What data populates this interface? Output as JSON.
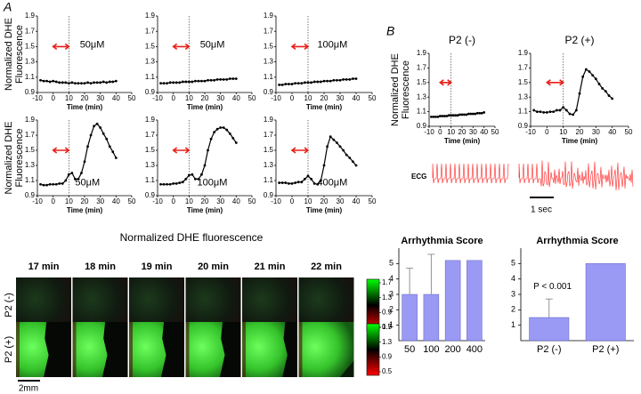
{
  "chart_data": [
    {
      "type": "line",
      "label": "50μM",
      "ylabel": [
        "Normalized DHE",
        "Fluorescence"
      ],
      "xlabel": "Time (min)",
      "color": "#000000",
      "x": [
        -8,
        -6,
        -4,
        -2,
        0,
        2,
        4,
        6,
        8,
        10,
        12,
        14,
        16,
        18,
        20,
        22,
        24,
        26,
        28,
        30,
        32,
        34,
        36,
        38,
        40
      ],
      "values": [
        1.06,
        1.05,
        1.05,
        1.04,
        1.05,
        1.04,
        1.03,
        1.03,
        1.03,
        1.02,
        1.03,
        1.02,
        1.02,
        1.02,
        1.02,
        1.03,
        1.02,
        1.03,
        1.03,
        1.03,
        1.04,
        1.03,
        1.04,
        1.04,
        1.05
      ],
      "xlim": [
        -10,
        50
      ],
      "xticks": [
        -10,
        0,
        10,
        20,
        30,
        40,
        50
      ],
      "ylim": [
        0.9,
        1.9
      ],
      "yticks": [
        0.9,
        1.1,
        1.3,
        1.5,
        1.7,
        1.9
      ],
      "vline": 10,
      "arrow": {
        "x": [
          0,
          10
        ],
        "y": 1.5,
        "color": "#e8201a"
      }
    },
    {
      "type": "line",
      "label": "50μM",
      "xlabel": "Time (min)",
      "color": "#000000",
      "x": [
        -8,
        -6,
        -4,
        -2,
        0,
        2,
        4,
        6,
        8,
        10,
        12,
        14,
        16,
        18,
        20,
        22,
        24,
        26,
        28,
        30,
        32,
        34,
        36,
        38,
        40
      ],
      "values": [
        1.02,
        1.02,
        1.02,
        1.03,
        1.03,
        1.03,
        1.03,
        1.04,
        1.04,
        1.04,
        1.04,
        1.05,
        1.05,
        1.05,
        1.05,
        1.06,
        1.06,
        1.06,
        1.07,
        1.07,
        1.07,
        1.07,
        1.08,
        1.08,
        1.08
      ],
      "xlim": [
        -10,
        50
      ],
      "xticks": [
        -10,
        0,
        10,
        20,
        30,
        40,
        50
      ],
      "ylim": [
        0.9,
        1.9
      ],
      "yticks": [
        0.9,
        1.1,
        1.3,
        1.5,
        1.7,
        1.9
      ],
      "vline": 10,
      "arrow": {
        "x": [
          0,
          10
        ],
        "y": 1.5,
        "color": "#e8201a"
      }
    },
    {
      "type": "line",
      "label": "100μM",
      "xlabel": "Time (min)",
      "color": "#000000",
      "x": [
        -8,
        -6,
        -4,
        -2,
        0,
        2,
        4,
        6,
        8,
        10,
        12,
        14,
        16,
        18,
        20,
        22,
        24,
        26,
        28,
        30,
        32,
        34,
        36,
        38,
        40
      ],
      "values": [
        1.0,
        1.0,
        1.01,
        1.01,
        1.01,
        1.02,
        1.02,
        1.02,
        1.03,
        1.03,
        1.03,
        1.04,
        1.04,
        1.04,
        1.05,
        1.05,
        1.05,
        1.06,
        1.06,
        1.06,
        1.07,
        1.07,
        1.07,
        1.08,
        1.08
      ],
      "xlim": [
        -10,
        50
      ],
      "xticks": [
        -10,
        0,
        10,
        20,
        30,
        40,
        50
      ],
      "ylim": [
        0.9,
        1.9
      ],
      "yticks": [
        0.9,
        1.1,
        1.3,
        1.5,
        1.7,
        1.9
      ],
      "vline": 10,
      "arrow": {
        "x": [
          0,
          10
        ],
        "y": 1.5,
        "color": "#e8201a"
      }
    },
    {
      "type": "line",
      "label": "50μM",
      "ylabel": [
        "Normalized DHE",
        "Fluorescence"
      ],
      "xlabel": "Time (min)",
      "color": "#000000",
      "x": [
        -8,
        -6,
        -4,
        -2,
        0,
        2,
        4,
        6,
        8,
        10,
        12,
        14,
        16,
        18,
        20,
        22,
        24,
        26,
        28,
        30,
        32,
        34,
        36,
        38,
        40
      ],
      "values": [
        1.05,
        1.04,
        1.04,
        1.05,
        1.05,
        1.05,
        1.06,
        1.06,
        1.1,
        1.18,
        1.2,
        1.12,
        1.12,
        1.2,
        1.35,
        1.55,
        1.7,
        1.82,
        1.85,
        1.8,
        1.72,
        1.65,
        1.55,
        1.48,
        1.4
      ],
      "xlim": [
        -10,
        50
      ],
      "xticks": [
        -10,
        0,
        10,
        20,
        30,
        40,
        50
      ],
      "ylim": [
        0.9,
        1.9
      ],
      "yticks": [
        0.9,
        1.1,
        1.3,
        1.5,
        1.7,
        1.9
      ],
      "vline": 10,
      "arrow": {
        "x": [
          0,
          10
        ],
        "y": 1.5,
        "color": "#e8201a"
      }
    },
    {
      "type": "line",
      "label": "100μM",
      "xlabel": "Time (min)",
      "color": "#000000",
      "x": [
        -8,
        -6,
        -4,
        -2,
        0,
        2,
        4,
        6,
        8,
        10,
        12,
        14,
        16,
        18,
        20,
        22,
        24,
        26,
        28,
        30,
        32,
        34,
        36,
        38,
        40
      ],
      "values": [
        1.05,
        1.05,
        1.05,
        1.05,
        1.06,
        1.06,
        1.07,
        1.08,
        1.12,
        1.17,
        1.18,
        1.12,
        1.12,
        1.18,
        1.3,
        1.5,
        1.65,
        1.74,
        1.78,
        1.8,
        1.8,
        1.77,
        1.72,
        1.66,
        1.6
      ],
      "xlim": [
        -10,
        50
      ],
      "xticks": [
        -10,
        0,
        10,
        20,
        30,
        40,
        50
      ],
      "ylim": [
        0.9,
        1.9
      ],
      "yticks": [
        0.9,
        1.1,
        1.3,
        1.5,
        1.7,
        1.9
      ],
      "vline": 10,
      "arrow": {
        "x": [
          0,
          10
        ],
        "y": 1.5,
        "color": "#e8201a"
      }
    },
    {
      "type": "line",
      "label": "400μM",
      "xlabel": "Time (min)",
      "color": "#000000",
      "x": [
        -8,
        -6,
        -4,
        -2,
        0,
        2,
        4,
        6,
        8,
        10,
        12,
        14,
        16,
        18,
        20,
        22,
        24,
        26,
        28,
        30,
        32,
        34,
        36,
        38,
        40
      ],
      "values": [
        1.07,
        1.07,
        1.07,
        1.06,
        1.06,
        1.07,
        1.08,
        1.08,
        1.12,
        1.16,
        1.12,
        1.06,
        1.05,
        1.1,
        1.3,
        1.55,
        1.68,
        1.64,
        1.6,
        1.55,
        1.5,
        1.44,
        1.4,
        1.35,
        1.3
      ],
      "xlim": [
        -10,
        50
      ],
      "xticks": [
        -10,
        0,
        10,
        20,
        30,
        40,
        50
      ],
      "ylim": [
        0.9,
        1.9
      ],
      "yticks": [
        0.9,
        1.1,
        1.3,
        1.5,
        1.7,
        1.9
      ],
      "vline": 10,
      "arrow": {
        "x": [
          0,
          10
        ],
        "y": 1.5,
        "color": "#e8201a"
      }
    },
    {
      "type": "line",
      "title": "P2 (-)",
      "ylabel": [
        "Normalized DHE",
        "Fluorescence"
      ],
      "xlabel": "Time (min)",
      "color": "#000000",
      "x": [
        -8,
        -6,
        -4,
        -2,
        0,
        2,
        4,
        6,
        8,
        10,
        12,
        14,
        16,
        18,
        20,
        22,
        24,
        26,
        28,
        30,
        32,
        34,
        36,
        38,
        40
      ],
      "values": [
        1.03,
        1.03,
        1.03,
        1.03,
        1.04,
        1.04,
        1.04,
        1.04,
        1.05,
        1.05,
        1.05,
        1.05,
        1.05,
        1.06,
        1.06,
        1.06,
        1.06,
        1.07,
        1.07,
        1.07,
        1.07,
        1.08,
        1.08,
        1.08,
        1.09
      ],
      "xlim": [
        -10,
        50
      ],
      "xticks": [
        -10,
        0,
        10,
        20,
        30,
        40,
        50
      ],
      "ylim": [
        0.9,
        1.9
      ],
      "yticks": [
        0.9,
        1.1,
        1.3,
        1.5,
        1.7,
        1.9
      ],
      "vline": 10,
      "arrow": {
        "x": [
          0,
          10
        ],
        "y": 1.5,
        "color": "#e8201a"
      }
    },
    {
      "type": "line",
      "title": "P2 (+)",
      "xlabel": "Time (min)",
      "color": "#000000",
      "x": [
        -8,
        -6,
        -4,
        -2,
        0,
        2,
        4,
        6,
        8,
        10,
        12,
        14,
        16,
        18,
        20,
        22,
        24,
        26,
        28,
        30,
        32,
        34,
        36,
        38,
        40
      ],
      "values": [
        1.12,
        1.1,
        1.1,
        1.09,
        1.09,
        1.1,
        1.1,
        1.12,
        1.12,
        1.16,
        1.12,
        1.07,
        1.06,
        1.12,
        1.35,
        1.58,
        1.68,
        1.65,
        1.6,
        1.55,
        1.48,
        1.42,
        1.38,
        1.32,
        1.28
      ],
      "xlim": [
        -10,
        50
      ],
      "xticks": [
        -10,
        0,
        10,
        20,
        30,
        40,
        50
      ],
      "ylim": [
        0.9,
        1.9
      ],
      "yticks": [
        0.9,
        1.1,
        1.3,
        1.5,
        1.7,
        1.9
      ],
      "vline": 10,
      "arrow": {
        "x": [
          0,
          10
        ],
        "y": 1.5,
        "color": "#e8201a"
      }
    },
    {
      "type": "bar",
      "title": "Arrhythmia Score",
      "categories": [
        "50",
        "100",
        "200",
        "400"
      ],
      "values": [
        3,
        3,
        5.2,
        5.2
      ],
      "errors": [
        1.7,
        2.6,
        null,
        null
      ],
      "color": "#9a9af5",
      "ylim": [
        0,
        6
      ],
      "yticks": [
        1,
        2,
        3,
        4,
        5
      ]
    },
    {
      "type": "bar",
      "title": "Arrhythmia Score",
      "annotation": "P < 0.001",
      "categories": [
        "P2 (-)",
        "P2 (+)"
      ],
      "values": [
        1.5,
        5
      ],
      "errors": [
        1.2,
        null
      ],
      "color": "#9a9af5",
      "ylim": [
        0,
        6
      ],
      "yticks": [
        1,
        2,
        3,
        4,
        5
      ]
    }
  ],
  "panel_labels": [
    "A",
    "B"
  ],
  "ecg": {
    "label": "ECG",
    "scale_bar": "1 sec"
  },
  "heatmap": {
    "title": "Normalized DHE fluorescence",
    "times": [
      "17 min",
      "18 min",
      "19 min",
      "20 min",
      "21 min",
      "22 min"
    ],
    "rows": [
      "P2 (-)",
      "P2 (+)"
    ],
    "colorbar_lim": [
      0.5,
      1.7
    ],
    "colorbar_ticks": [
      1.7,
      1.3,
      0.9,
      0.5
    ],
    "scale_bar": "2mm"
  }
}
